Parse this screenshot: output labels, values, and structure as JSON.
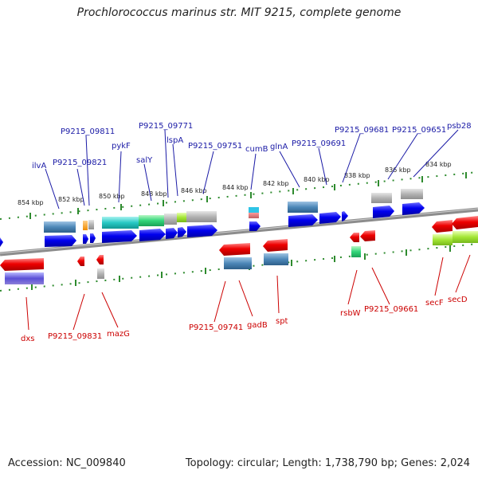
{
  "title": "Prochlorococcus marinus str. MIT 9215, complete genome",
  "footer": {
    "accession": "Accession: NC_009840",
    "summary": "Topology: circular; Length: 1,738,790 bp; Genes: 2,024"
  },
  "ticks": [
    "854 kbp",
    "852 kbp",
    "850 kbp",
    "848 kbp",
    "846 kbp",
    "844 kbp",
    "842 kbp",
    "840 kbp",
    "838 kbp",
    "836 kbp",
    "834 kbp"
  ],
  "genes_forward": [
    "ilvA",
    "P9215_09821",
    "P9215_09811",
    "pykF",
    "salY",
    "P9215_09771",
    "lspA",
    "P9215_09751",
    "cumB",
    "glnA",
    "P9215_09691",
    "P9215_09681",
    "P9215_09651",
    "psb28"
  ],
  "genes_reverse": [
    "dxs",
    "P9215_09831",
    "mazG",
    "P9215_09741",
    "gadB",
    "spt",
    "rsbW",
    "P9215_09661",
    "secF",
    "secD"
  ],
  "colors": {
    "forward_gene": "#0000ee",
    "reverse_gene": "#ee0000",
    "forward_label": "#1a1aa6",
    "reverse_label": "#cc0000",
    "backbone": "#7a7a7a",
    "tick_major": "#2e8b2e"
  }
}
